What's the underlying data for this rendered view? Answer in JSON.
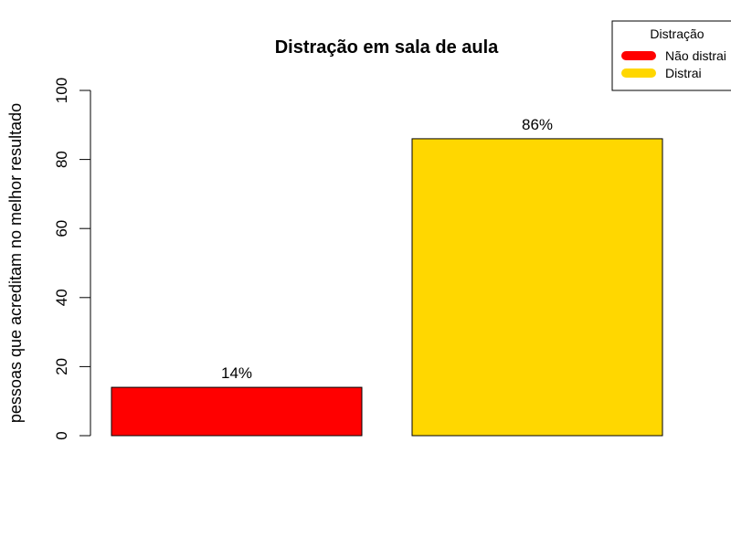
{
  "chart_data": {
    "type": "bar",
    "title": "Distração em sala de aula",
    "xlabel": "",
    "ylabel": "pessoas que acreditam no melhor resultado",
    "ylim": [
      0,
      100
    ],
    "yticks": [
      "0",
      "20",
      "40",
      "60",
      "80",
      "100"
    ],
    "categories": [
      "Não distrai",
      "Distrai"
    ],
    "values": [
      14,
      86
    ],
    "data_labels": [
      "14%",
      "86%"
    ],
    "colors": [
      "#ff0000",
      "#ffd700"
    ],
    "legend": {
      "title": "Distração",
      "placement": "top-right",
      "entries": [
        {
          "label": "Não distrai",
          "color": "#ff0000"
        },
        {
          "label": "Distrai",
          "color": "#ffd700"
        }
      ]
    },
    "grid": false
  }
}
